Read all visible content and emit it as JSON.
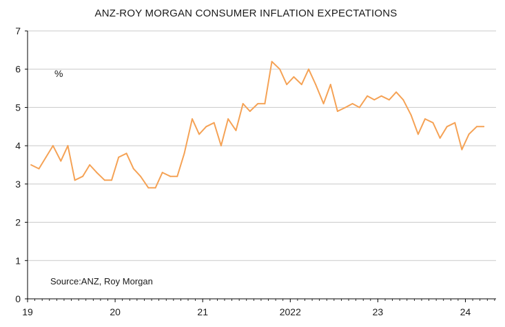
{
  "chart_data": {
    "type": "line",
    "title": "ANZ-ROY MORGAN CONSUMER INFLATION EXPECTATIONS",
    "unit_label": "%",
    "source": "Source:ANZ, Roy Morgan",
    "xlabel": "",
    "ylabel": "",
    "ylim": [
      0,
      7
    ],
    "yticks": [
      0,
      1,
      2,
      3,
      4,
      5,
      6,
      7
    ],
    "xlim": [
      2019,
      2024.35
    ],
    "xticks": [
      {
        "value": 2019,
        "label": "19"
      },
      {
        "value": 2020,
        "label": "20"
      },
      {
        "value": 2021,
        "label": "21"
      },
      {
        "value": 2022,
        "label": "2022"
      },
      {
        "value": 2023,
        "label": "23"
      },
      {
        "value": 2024,
        "label": "24"
      }
    ],
    "grid": true,
    "series": [
      {
        "name": "Consumer inflation expectations",
        "color": "#f5a255",
        "x": [
          2019.04,
          2019.13,
          2019.21,
          2019.29,
          2019.38,
          2019.46,
          2019.54,
          2019.63,
          2019.71,
          2019.79,
          2019.88,
          2019.96,
          2020.04,
          2020.13,
          2020.21,
          2020.29,
          2020.38,
          2020.46,
          2020.54,
          2020.63,
          2020.71,
          2020.79,
          2020.88,
          2020.96,
          2021.04,
          2021.13,
          2021.21,
          2021.29,
          2021.38,
          2021.46,
          2021.54,
          2021.63,
          2021.71,
          2021.79,
          2021.88,
          2021.96,
          2022.04,
          2022.13,
          2022.21,
          2022.29,
          2022.38,
          2022.46,
          2022.54,
          2022.63,
          2022.71,
          2022.79,
          2022.88,
          2022.96,
          2023.04,
          2023.13,
          2023.21,
          2023.29,
          2023.38,
          2023.46,
          2023.54,
          2023.63,
          2023.71,
          2023.79,
          2023.88,
          2023.96,
          2024.04,
          2024.13,
          2024.21
        ],
        "values": [
          3.5,
          3.4,
          3.7,
          4.0,
          3.6,
          4.0,
          3.1,
          3.2,
          3.5,
          3.3,
          3.1,
          3.1,
          3.7,
          3.8,
          3.4,
          3.2,
          2.9,
          2.9,
          3.3,
          3.2,
          3.2,
          3.8,
          4.7,
          4.3,
          4.5,
          4.6,
          4.0,
          4.7,
          4.4,
          5.1,
          4.9,
          5.1,
          5.1,
          6.2,
          6.0,
          5.6,
          5.8,
          5.6,
          6.0,
          5.6,
          5.1,
          5.6,
          4.9,
          5.0,
          5.1,
          5.0,
          5.3,
          5.2,
          5.3,
          5.2,
          5.4,
          5.2,
          4.8,
          4.3,
          4.7,
          4.6,
          4.2,
          4.5,
          4.6,
          3.9,
          4.3,
          4.5,
          4.5
        ]
      }
    ]
  },
  "colors": {
    "line": "#f5a255",
    "grid": "#c8c8c8",
    "axis": "#000000",
    "text": "#1a1a1a"
  }
}
